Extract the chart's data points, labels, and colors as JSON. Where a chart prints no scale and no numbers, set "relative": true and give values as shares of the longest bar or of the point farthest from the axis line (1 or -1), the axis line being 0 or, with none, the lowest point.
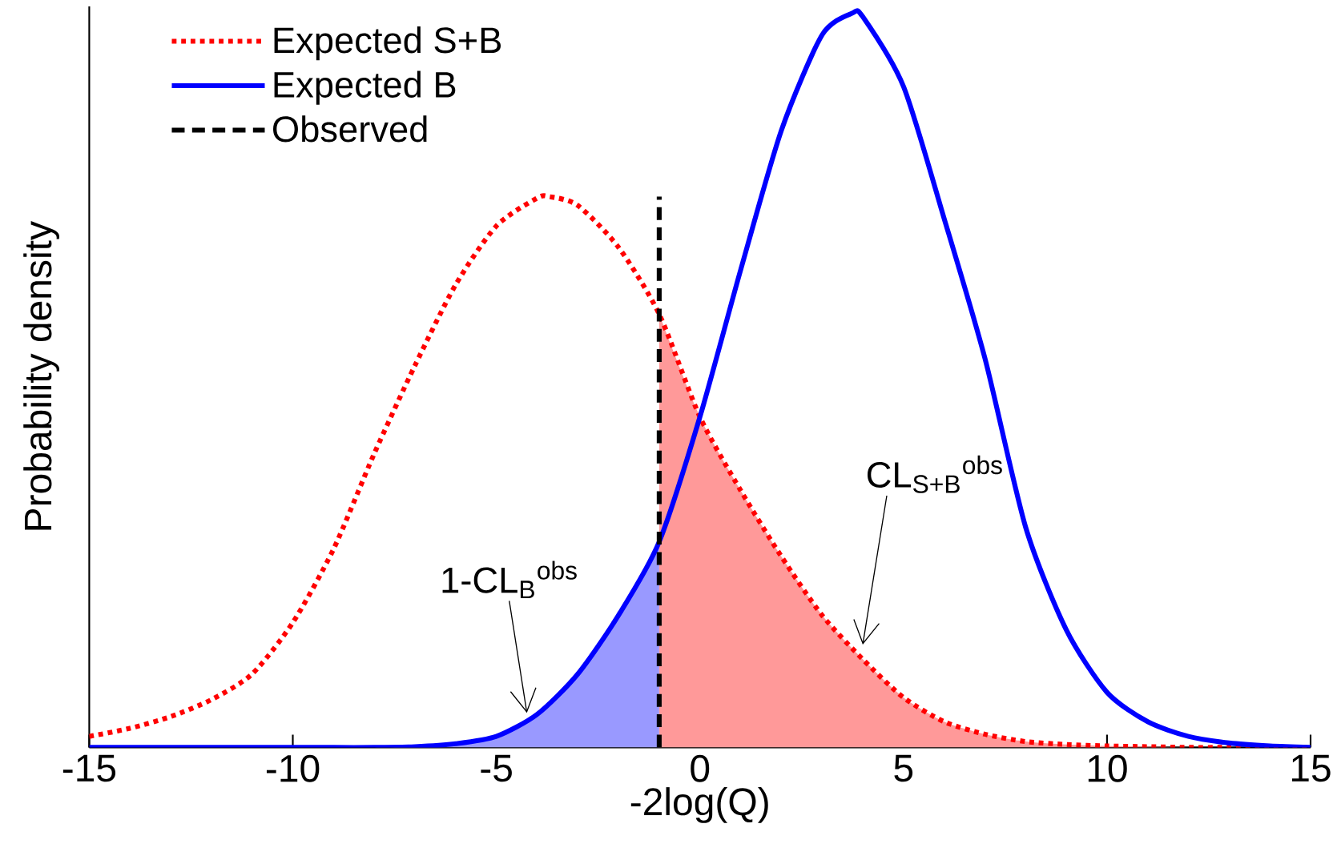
{
  "chart_data": {
    "type": "line",
    "xlabel": "-2log(Q)",
    "ylabel": "Probability density",
    "relative": true,
    "legend": "top left",
    "xlim": [
      -15,
      15
    ],
    "xticks": [
      -15,
      -10,
      -5,
      0,
      5,
      10,
      15
    ],
    "series": [
      {
        "type": "area",
        "color": "#9999ff",
        "x": [
          -15,
          -14,
          -13,
          -12,
          -11,
          -10,
          -9,
          -8,
          -7,
          -6,
          -5,
          -4,
          -3,
          -2,
          -1
        ],
        "values": [
          0,
          0,
          0,
          0,
          0,
          0,
          0,
          0,
          0.001,
          0.005,
          0.015,
          0.045,
          0.1,
          0.18,
          0.28
        ]
      },
      {
        "type": "area",
        "color": "#ff9999",
        "x": [
          -1,
          0,
          1,
          2,
          3,
          4,
          5,
          6,
          7,
          8,
          9,
          10,
          11,
          12,
          13,
          14,
          15
        ],
        "values": [
          0.59,
          0.45,
          0.35,
          0.26,
          0.18,
          0.12,
          0.068,
          0.035,
          0.018,
          0.008,
          0.004,
          0.002,
          0.001,
          0,
          0,
          0,
          0
        ]
      },
      {
        "name": "Expected S+B",
        "color": "#ff0000",
        "line_style": "dotted",
        "x": [
          -15,
          -14,
          -13,
          -12,
          -11,
          -10,
          -9,
          -8,
          -7,
          -6,
          -5,
          -4,
          -3.7,
          -3,
          -2,
          -1,
          0,
          1,
          2,
          3,
          4,
          5,
          6,
          7,
          8,
          9,
          10,
          11,
          12,
          13,
          14,
          15
        ],
        "values": [
          0.015,
          0.026,
          0.042,
          0.065,
          0.1,
          0.17,
          0.27,
          0.4,
          0.52,
          0.63,
          0.71,
          0.748,
          0.75,
          0.738,
          0.681,
          0.59,
          0.45,
          0.35,
          0.26,
          0.18,
          0.12,
          0.068,
          0.035,
          0.018,
          0.008,
          0.004,
          0.002,
          0.001,
          0,
          0,
          0,
          0
        ]
      },
      {
        "name": "Expected B",
        "color": "#0000ff",
        "line_style": "solid",
        "x": [
          -15,
          -14,
          -13,
          -12,
          -11,
          -10,
          -9,
          -8,
          -7,
          -6,
          -5,
          -4,
          -3,
          -2,
          -1,
          0,
          1,
          2,
          3,
          3.75,
          4,
          5,
          6,
          7,
          8,
          9,
          10,
          11,
          12,
          13,
          14,
          15
        ],
        "values": [
          0,
          0,
          0,
          0,
          0,
          0,
          0,
          0,
          0.001,
          0.005,
          0.015,
          0.045,
          0.1,
          0.18,
          0.28,
          0.45,
          0.65,
          0.84,
          0.97,
          1,
          0.995,
          0.9,
          0.72,
          0.53,
          0.3,
          0.16,
          0.075,
          0.035,
          0.015,
          0.006,
          0.002,
          0
        ]
      },
      {
        "name": "Observed",
        "color": "#000000",
        "line_style": "dashed",
        "x": [
          -1,
          -1
        ],
        "values": [
          0,
          0.75
        ]
      }
    ],
    "annotations": [
      {
        "text": "1-CL$_{B}$$^{obs}$",
        "x": -4.25,
        "y": 0.047
      },
      {
        "text": "CL$_{S+B}$$^{obs}$",
        "x": 4,
        "y": 0.14
      }
    ]
  }
}
